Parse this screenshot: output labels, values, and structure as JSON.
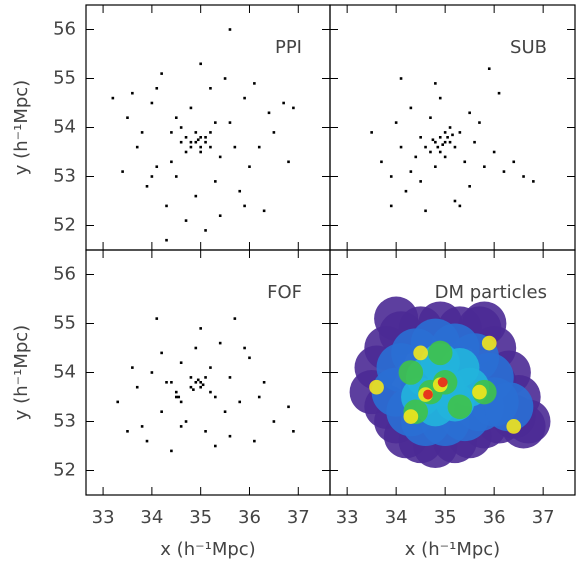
{
  "chart_data": [
    {
      "type": "scatter",
      "label": "PPI",
      "color": "#000000",
      "ylabel": "y (h⁻¹Mpc)",
      "show_xtick_labels": false,
      "show_ytick_labels": true,
      "xlim": [
        32.65,
        37.65
      ],
      "ylim": [
        51.5,
        56.5
      ],
      "xticks": [
        33,
        34,
        35,
        36,
        37
      ],
      "yticks": [
        52,
        53,
        54,
        55,
        56
      ],
      "x": [
        33.2,
        33.4,
        33.5,
        33.7,
        33.9,
        34.0,
        34.1,
        34.2,
        34.3,
        34.4,
        34.5,
        34.5,
        34.6,
        34.7,
        34.7,
        34.8,
        34.8,
        34.9,
        34.9,
        35.0,
        35.0,
        35.0,
        35.1,
        35.1,
        35.2,
        35.2,
        35.3,
        35.4,
        35.5,
        35.6,
        35.7,
        35.8,
        35.9,
        36.0,
        36.1,
        36.3,
        36.5,
        36.7,
        36.9,
        35.6,
        34.9,
        35.0,
        34.8,
        35.1,
        34.95,
        34.7,
        35.2,
        34.6,
        35.3,
        34.4,
        33.8,
        36.2,
        34.1,
        35.9,
        34.0,
        36.4,
        33.6,
        35.4,
        34.3,
        36.8
      ],
      "y": [
        54.6,
        53.1,
        54.2,
        53.6,
        52.8,
        54.5,
        53.2,
        55.1,
        52.4,
        53.9,
        54.2,
        53.0,
        53.7,
        52.1,
        53.8,
        53.6,
        54.4,
        53.7,
        52.6,
        53.8,
        53.5,
        55.3,
        53.7,
        51.9,
        53.9,
        54.8,
        52.9,
        53.4,
        55.0,
        54.1,
        53.6,
        52.7,
        54.6,
        53.2,
        54.9,
        52.3,
        53.9,
        54.5,
        54.4,
        56.0,
        53.9,
        53.6,
        53.7,
        53.8,
        53.75,
        53.5,
        53.6,
        54.0,
        54.1,
        53.3,
        53.9,
        53.6,
        54.8,
        52.4,
        53.0,
        54.3,
        54.7,
        52.2,
        51.7,
        53.3
      ]
    },
    {
      "type": "scatter",
      "label": "SUB",
      "color": "#000000",
      "show_xtick_labels": false,
      "show_ytick_labels": false,
      "xlim": [
        32.65,
        37.65
      ],
      "ylim": [
        51.5,
        56.5
      ],
      "xticks": [
        33,
        34,
        35,
        36,
        37
      ],
      "yticks": [
        52,
        53,
        54,
        55,
        56
      ],
      "x": [
        33.5,
        33.7,
        33.9,
        34.0,
        34.1,
        34.2,
        34.3,
        34.4,
        34.5,
        34.5,
        34.6,
        34.7,
        34.7,
        34.8,
        34.8,
        34.9,
        34.9,
        35.0,
        35.0,
        35.0,
        35.1,
        35.1,
        35.2,
        35.2,
        35.3,
        35.4,
        35.5,
        35.6,
        35.8,
        35.9,
        36.0,
        36.2,
        36.4,
        36.6,
        36.8,
        34.1,
        35.3,
        34.8,
        34.95,
        35.05,
        34.85,
        34.9,
        35.15,
        34.75,
        33.9,
        34.3,
        35.7,
        36.1,
        35.5,
        34.6
      ],
      "y": [
        53.9,
        53.3,
        53.0,
        54.1,
        53.6,
        52.7,
        54.4,
        53.4,
        53.8,
        52.9,
        53.6,
        54.2,
        53.5,
        53.7,
        53.2,
        53.8,
        54.6,
        53.7,
        53.9,
        53.4,
        53.7,
        54.0,
        53.6,
        52.5,
        53.9,
        53.3,
        54.3,
        53.7,
        53.2,
        55.2,
        53.5,
        53.1,
        53.3,
        53.0,
        52.9,
        55.0,
        52.4,
        54.9,
        53.65,
        53.8,
        53.6,
        53.5,
        53.85,
        53.75,
        52.4,
        53.1,
        54.1,
        54.7,
        52.8,
        52.3
      ]
    },
    {
      "type": "scatter",
      "label": "FOF",
      "color": "#000000",
      "ylabel": "y (h⁻¹Mpc)",
      "xlabel": "x (h⁻¹Mpc)",
      "show_xtick_labels": true,
      "show_ytick_labels": true,
      "xlim": [
        32.65,
        37.65
      ],
      "ylim": [
        51.5,
        56.5
      ],
      "xticks": [
        33,
        34,
        35,
        36,
        37
      ],
      "yticks": [
        52,
        53,
        54,
        55,
        56
      ],
      "x": [
        33.3,
        33.5,
        33.7,
        33.9,
        34.0,
        34.1,
        34.2,
        34.3,
        34.4,
        34.5,
        34.5,
        34.6,
        34.6,
        34.7,
        34.8,
        34.8,
        34.9,
        34.9,
        35.0,
        35.0,
        35.0,
        35.1,
        35.1,
        35.2,
        35.3,
        35.4,
        35.5,
        35.6,
        35.7,
        35.8,
        36.0,
        36.1,
        36.3,
        36.5,
        36.8,
        36.9,
        34.55,
        34.95,
        35.05,
        34.85,
        34.4,
        35.2,
        33.8,
        34.2,
        35.9,
        35.3,
        34.6,
        36.2,
        33.6,
        35.6
      ],
      "y": [
        53.4,
        52.8,
        53.7,
        52.6,
        54.0,
        55.1,
        53.2,
        53.8,
        52.4,
        53.5,
        53.6,
        54.2,
        53.4,
        53.0,
        53.9,
        53.7,
        54.5,
        53.8,
        53.8,
        53.7,
        54.9,
        53.9,
        52.8,
        54.1,
        53.5,
        54.6,
        53.2,
        53.9,
        55.1,
        53.4,
        54.3,
        52.6,
        53.8,
        53.0,
        53.3,
        52.8,
        53.5,
        53.85,
        53.75,
        53.65,
        53.8,
        53.6,
        52.9,
        54.4,
        54.5,
        52.5,
        52.9,
        53.5,
        54.1,
        52.7
      ]
    },
    {
      "type": "density",
      "label": "DM particles",
      "xlabel": "x (h⁻¹Mpc)",
      "show_xtick_labels": true,
      "show_ytick_labels": false,
      "xlim": [
        32.65,
        37.65
      ],
      "ylim": [
        51.5,
        56.5
      ],
      "xticks": [
        33,
        34,
        35,
        36,
        37
      ],
      "yticks": [
        52,
        53,
        54,
        55,
        56
      ],
      "series": [
        {
          "color": "#4b2a95",
          "size": 9,
          "x": [
            33.5,
            33.8,
            34.0,
            34.2,
            34.5,
            34.8,
            35.2,
            35.5,
            35.8,
            36.1,
            36.4,
            36.7,
            36.5,
            36.3,
            36.0,
            35.7,
            35.3,
            34.9,
            34.5,
            34.1,
            33.8,
            33.6,
            36.0,
            36.6,
            34.0,
            35.8
          ],
          "y": [
            53.6,
            53.3,
            53.0,
            52.7,
            52.6,
            52.5,
            52.6,
            52.7,
            52.9,
            53.0,
            53.1,
            53.0,
            53.5,
            54.0,
            54.5,
            54.9,
            54.9,
            55.0,
            54.9,
            54.8,
            54.5,
            54.1,
            53.8,
            52.9,
            55.1,
            55.0
          ]
        },
        {
          "color": "#2a6fd4",
          "size": 10,
          "x": [
            34.0,
            34.3,
            34.6,
            35.0,
            35.4,
            35.7,
            36.0,
            35.9,
            35.6,
            35.2,
            34.8,
            34.4,
            34.1,
            34.6,
            35.3,
            35.0,
            36.3
          ],
          "y": [
            53.6,
            53.2,
            53.0,
            53.0,
            53.1,
            53.3,
            53.4,
            53.9,
            54.3,
            54.5,
            54.6,
            54.4,
            54.1,
            53.7,
            53.8,
            54.1,
            53.3
          ]
        },
        {
          "color": "#22b4dc",
          "size": 8,
          "x": [
            34.5,
            34.8,
            35.2,
            35.5,
            35.3,
            34.9,
            34.6,
            35.0
          ],
          "y": [
            53.5,
            53.3,
            53.4,
            53.7,
            54.1,
            54.2,
            53.9,
            53.7
          ]
        },
        {
          "color": "#3fc24a",
          "size": 5,
          "x": [
            34.7,
            35.0,
            34.9,
            34.4,
            35.8,
            34.3,
            35.3
          ],
          "y": [
            53.6,
            53.8,
            54.4,
            53.2,
            53.6,
            54.0,
            53.3
          ]
        },
        {
          "color": "#f2e51c",
          "size": 3,
          "x": [
            34.9,
            34.6,
            34.5,
            34.3,
            35.7,
            36.4,
            33.6,
            35.9
          ],
          "y": [
            53.75,
            53.55,
            54.4,
            53.1,
            53.6,
            52.9,
            53.7,
            54.6
          ]
        },
        {
          "color": "#e8261c",
          "size": 2,
          "x": [
            34.95,
            34.65
          ],
          "y": [
            53.8,
            53.55
          ]
        }
      ]
    }
  ]
}
